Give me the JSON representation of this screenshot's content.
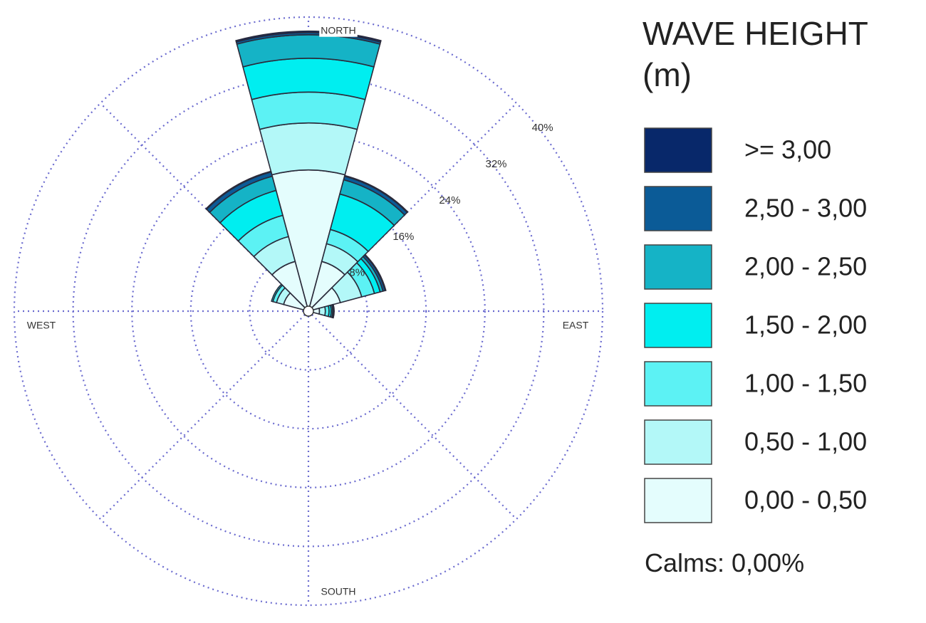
{
  "chart_data": {
    "type": "polar-stacked-bar",
    "legend_title": "WAVE HEIGHT (m)",
    "categories": [
      "NORTH",
      null,
      null,
      "EAST",
      null,
      null,
      "SOUTH",
      null,
      null,
      "WEST",
      null,
      null
    ],
    "series": [
      {
        "name": "0,00 - 0,50",
        "color": "#e4fdfd",
        "values": [
          19.2,
          7.0,
          4.5,
          1.5,
          0.3,
          0,
          0,
          0,
          0.2,
          0.3,
          3.5,
          7.0
        ]
      },
      {
        "name": "0,50 - 1,00",
        "color": "#b3f8f8",
        "values": [
          6.4,
          2.5,
          3.0,
          0.8,
          0,
          0,
          0,
          0,
          0,
          0,
          1.0,
          3.5
        ]
      },
      {
        "name": "1,00 - 1,50",
        "color": "#5cf2f4",
        "values": [
          4.2,
          2.0,
          1.8,
          0.5,
          0,
          0,
          0,
          0,
          0,
          0,
          0.5,
          3.0
        ]
      },
      {
        "name": "1,50 - 2,00",
        "color": "#00eef0",
        "values": [
          4.6,
          5.0,
          0.8,
          0.3,
          0,
          0,
          0,
          0,
          0,
          0,
          0.2,
          3.5
        ]
      },
      {
        "name": "2,00 - 2,50",
        "color": "#15b3c6",
        "values": [
          3.2,
          2.0,
          0.4,
          0.2,
          0,
          0,
          0,
          0,
          0,
          0,
          0,
          2.0
        ]
      },
      {
        "name": "2,50 - 3,00",
        "color": "#0b5b97",
        "values": [
          0.3,
          0.5,
          0.3,
          0.1,
          0,
          0,
          0,
          0,
          0,
          0,
          0,
          0.6
        ]
      },
      {
        "name": ">= 3,00",
        "color": "#08286a",
        "values": [
          0.2,
          0.1,
          0.1,
          0.1,
          0,
          0,
          0,
          0,
          0,
          0,
          0,
          0.1
        ]
      }
    ],
    "rlim": [
      0,
      40
    ],
    "rticks": [
      {
        "value": 8,
        "label": "8%"
      },
      {
        "value": 16,
        "label": "16%"
      },
      {
        "value": 24,
        "label": "24%"
      },
      {
        "value": 32,
        "label": "32%"
      },
      {
        "value": 40,
        "label": "40%"
      }
    ],
    "grid": true,
    "calms_label": "Calms: 0,00%"
  }
}
